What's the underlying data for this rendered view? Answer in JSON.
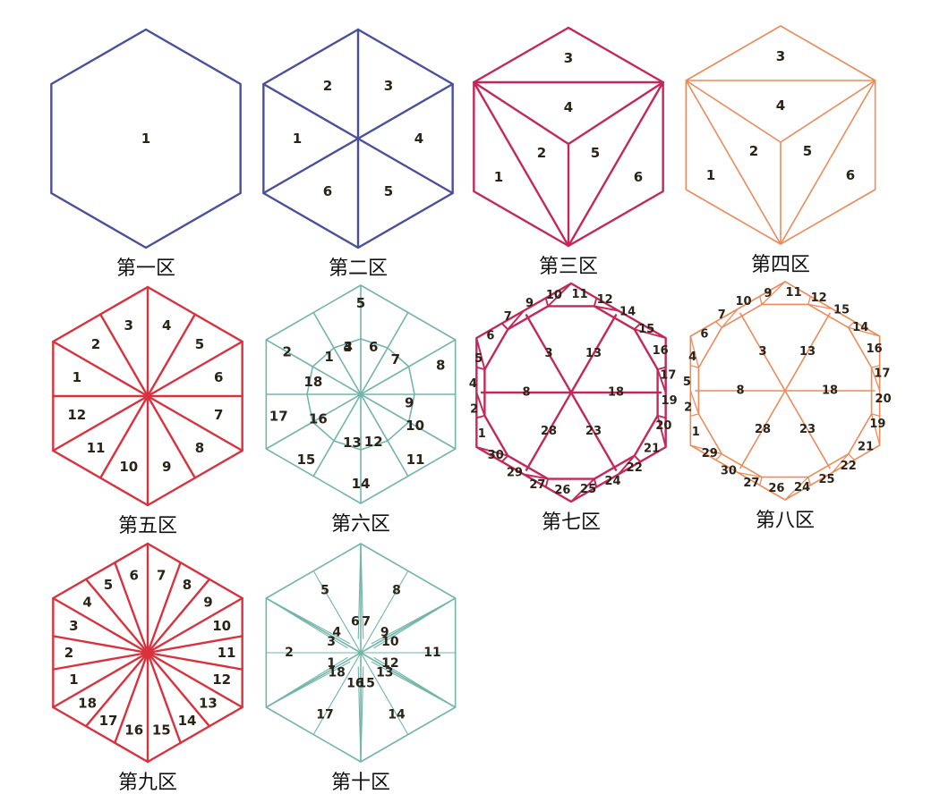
{
  "colors": {
    "blue": "#4a4f9c",
    "crimson": "#c2285a",
    "orange": "#ec8a5a",
    "red": "#d8323e",
    "teal": "#72b5aa",
    "text": "#2a2318"
  },
  "panels": [
    {
      "caption": "第一区",
      "color": "blue",
      "pattern": "plain",
      "labels": [
        "1"
      ]
    },
    {
      "caption": "第二区",
      "color": "blue",
      "pattern": "six-sectors",
      "labels": [
        "2",
        "3",
        "4",
        "5",
        "6",
        "1"
      ]
    },
    {
      "caption": "第三区",
      "color": "crimson",
      "pattern": "cube",
      "labels": [
        "3",
        "4",
        "2",
        "5",
        "1",
        "6"
      ]
    },
    {
      "caption": "第四区",
      "color": "orange",
      "pattern": "cube",
      "labels": [
        "3",
        "4",
        "2",
        "5",
        "1",
        "6"
      ]
    },
    {
      "caption": "第五区",
      "color": "red",
      "pattern": "twelve-sectors",
      "labels": [
        "3",
        "4",
        "5",
        "6",
        "7",
        "8",
        "9",
        "10",
        "11",
        "12",
        "1",
        "2"
      ]
    },
    {
      "caption": "第六区",
      "color": "teal",
      "pattern": "star-pentagons",
      "labels": [
        "5",
        "4",
        "6",
        "7",
        "8",
        "9",
        "10",
        "11",
        "12",
        "13",
        "14",
        "15",
        "16",
        "17",
        "18",
        "2",
        "1",
        "3"
      ]
    },
    {
      "caption": "第七区",
      "color": "crimson",
      "pattern": "dodecagon",
      "labels": [
        "10",
        "11",
        "12",
        "14",
        "15",
        "16",
        "17",
        "19",
        "20",
        "21",
        "22",
        "24",
        "25",
        "26",
        "27",
        "29",
        "30",
        "1",
        "2",
        "4",
        "5",
        "6",
        "7",
        "9",
        "13",
        "18",
        "23",
        "28",
        "8",
        "3"
      ]
    },
    {
      "caption": "第八区",
      "color": "orange",
      "pattern": "dodecagon",
      "labels": [
        "9",
        "11",
        "12",
        "15",
        "14",
        "16",
        "17",
        "20",
        "19",
        "21",
        "22",
        "25",
        "24",
        "26",
        "27",
        "30",
        "29",
        "1",
        "2",
        "5",
        "4",
        "6",
        "7",
        "10",
        "13",
        "18",
        "23",
        "28",
        "8",
        "3"
      ]
    },
    {
      "caption": "第九区",
      "color": "red",
      "pattern": "eighteen-sectors",
      "labels": [
        "6",
        "7",
        "8",
        "9",
        "10",
        "11",
        "12",
        "13",
        "14",
        "15",
        "16",
        "17",
        "18",
        "1",
        "2",
        "3",
        "4",
        "5"
      ]
    },
    {
      "caption": "第十区",
      "color": "teal",
      "pattern": "star",
      "labels": [
        "6",
        "7",
        "8",
        "9",
        "10",
        "11",
        "12",
        "13",
        "14",
        "15",
        "16",
        "17",
        "18",
        "1",
        "2",
        "3",
        "4",
        "5"
      ]
    }
  ]
}
